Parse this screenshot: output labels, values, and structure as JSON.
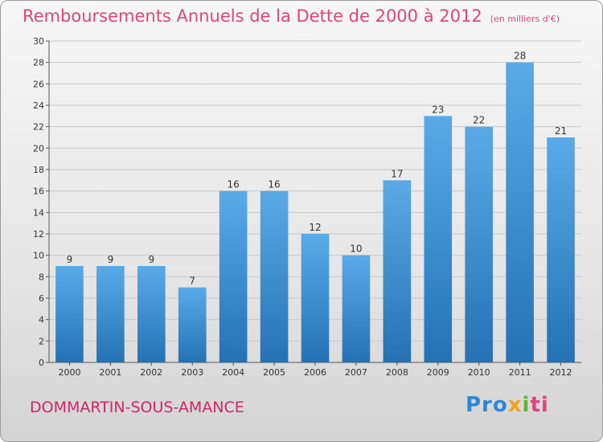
{
  "header": {
    "title": "Remboursements Annuels de la Dette de 2000 à 2012",
    "unit": "(en milliers d'€)"
  },
  "footer": {
    "town": "DOMMARTIN-SOUS-AMANCE",
    "logo": [
      "Pro",
      "x",
      "i",
      "ti"
    ]
  },
  "colors": {
    "bar_top": "#5aaae8",
    "bar_bottom": "#2472b4",
    "title": "#e0447a",
    "grid": "#c8c8c8"
  },
  "chart_data": {
    "type": "bar",
    "title": "Remboursements Annuels de la Dette de 2000 à 2012",
    "categories": [
      "2000",
      "2001",
      "2002",
      "2003",
      "2004",
      "2005",
      "2006",
      "2007",
      "2008",
      "2009",
      "2010",
      "2011",
      "2012"
    ],
    "values": [
      9,
      9,
      9,
      7,
      16,
      16,
      12,
      10,
      17,
      23,
      22,
      28,
      21
    ],
    "xlabel": "",
    "ylabel": "",
    "ylim": [
      0,
      30
    ],
    "yticks": [
      0,
      2,
      4,
      6,
      8,
      10,
      12,
      14,
      16,
      18,
      20,
      22,
      24,
      26,
      28,
      30
    ],
    "grid": true,
    "data_labels": true
  }
}
